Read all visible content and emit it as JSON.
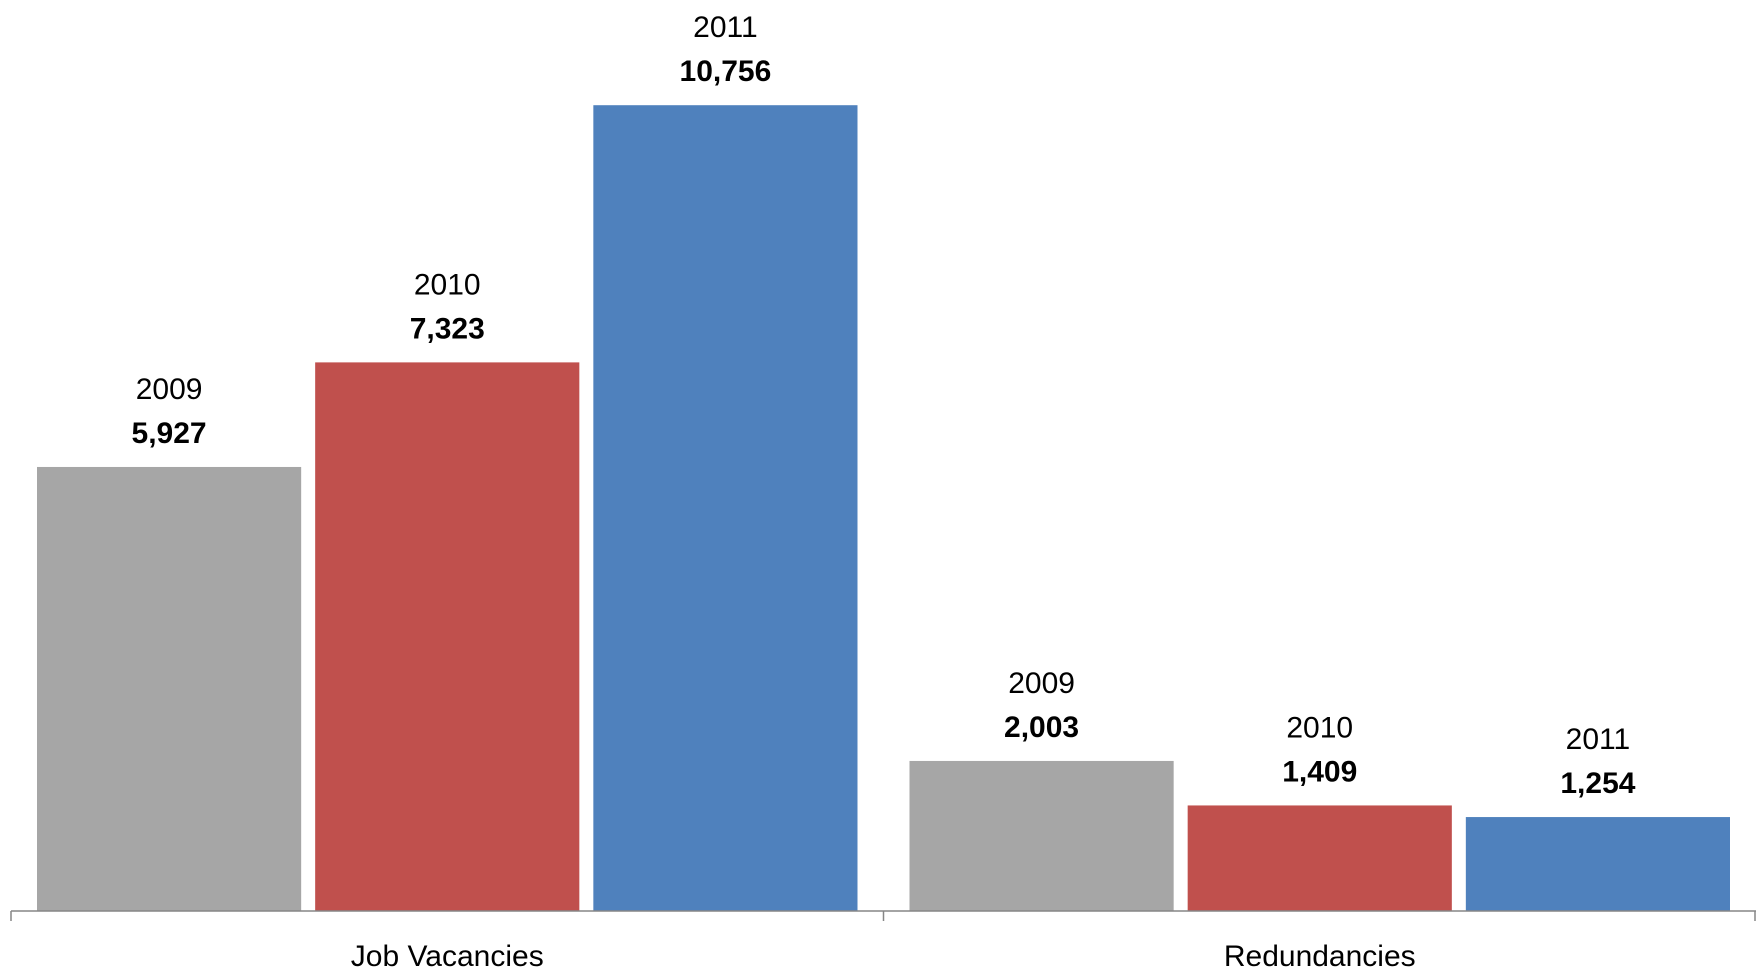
{
  "chart_data": {
    "type": "bar",
    "categories": [
      "Job Vacancies",
      "Redundancies"
    ],
    "series": [
      {
        "name": "2009",
        "color": "#a6a6a6",
        "values": [
          5927,
          2003
        ],
        "value_labels": [
          "5,927",
          "2,003"
        ]
      },
      {
        "name": "2010",
        "color": "#c0504d",
        "values": [
          7323,
          1409
        ],
        "value_labels": [
          "7,323",
          "1,409"
        ]
      },
      {
        "name": "2011",
        "color": "#4f81bd",
        "values": [
          10756,
          1254
        ],
        "value_labels": [
          "10,756",
          "1,254"
        ]
      }
    ],
    "ylim": [
      0,
      12000
    ]
  }
}
